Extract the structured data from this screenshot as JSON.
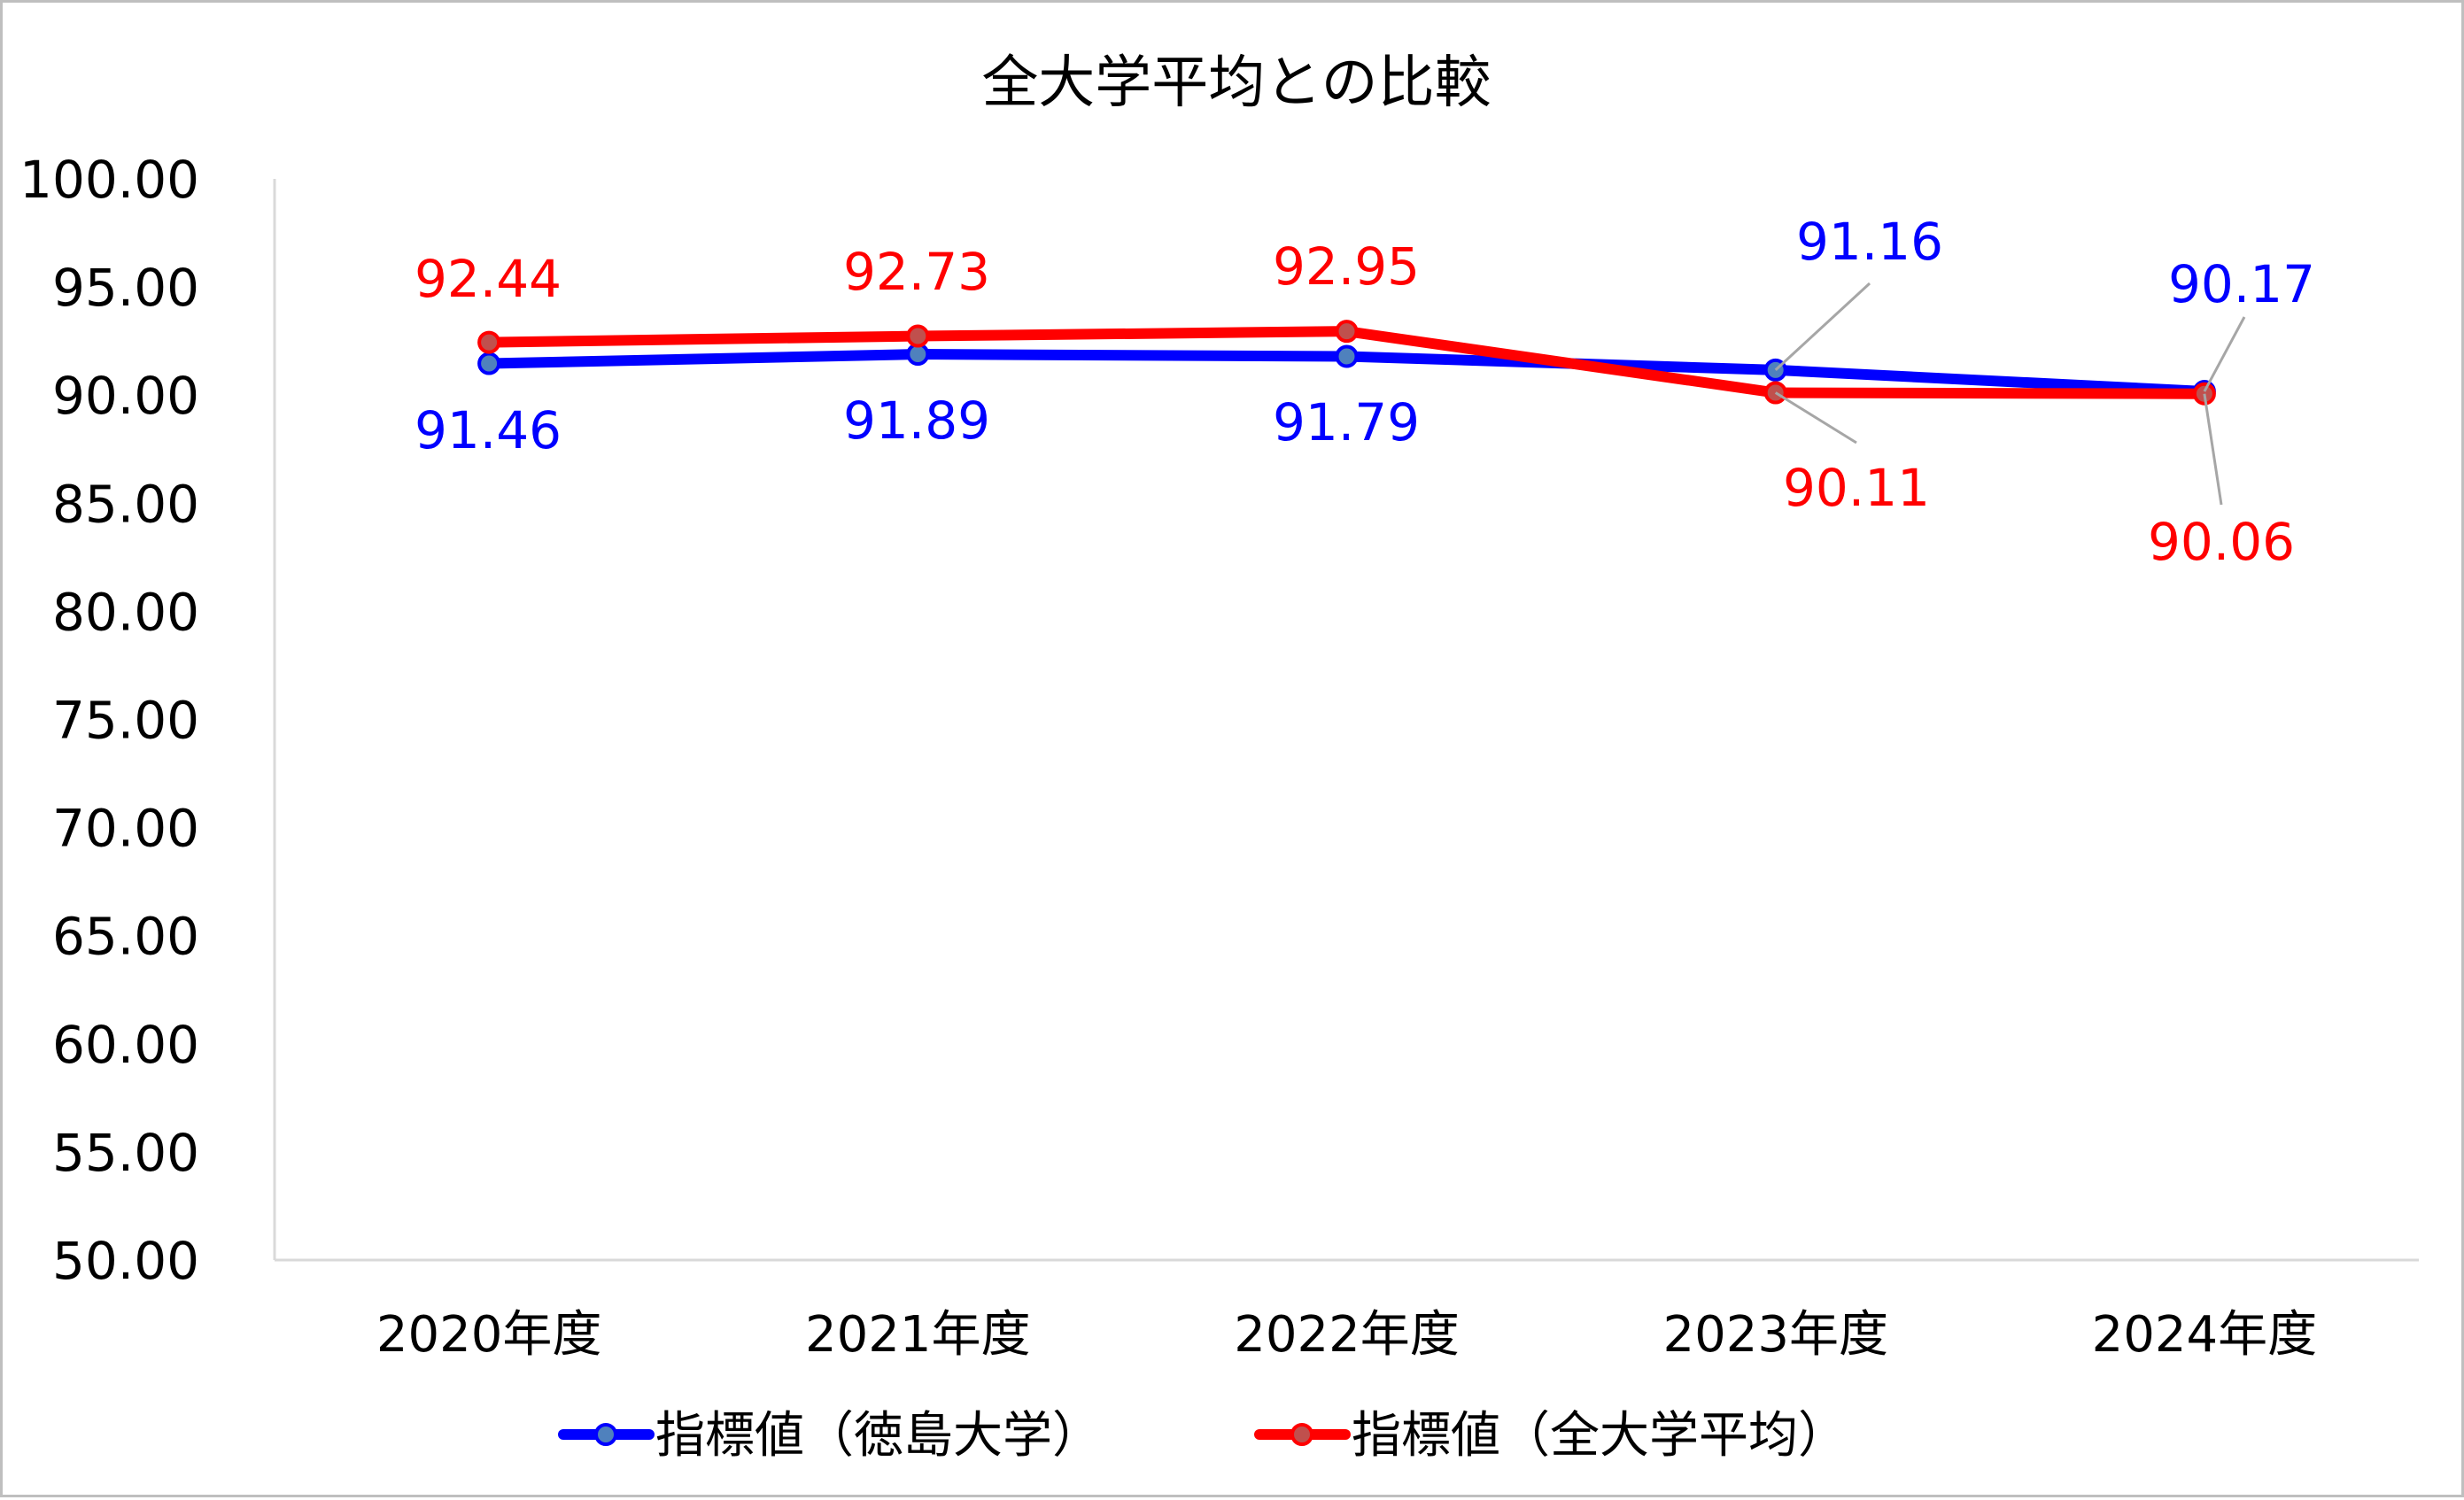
{
  "chart_data": {
    "type": "line",
    "title": "全大学平均との比較",
    "xlabel": "",
    "ylabel": "",
    "categories": [
      "2020年度",
      "2021年度",
      "2022年度",
      "2023年度",
      "2024年度"
    ],
    "ylim": [
      50,
      100
    ],
    "yticks": [
      "100.00",
      "95.00",
      "90.00",
      "85.00",
      "80.00",
      "75.00",
      "70.00",
      "65.00",
      "60.00",
      "55.00",
      "50.00"
    ],
    "grid": false,
    "legend_position": "bottom",
    "series": [
      {
        "name": "指標値（徳島大学）",
        "values": [
          91.46,
          91.89,
          91.79,
          91.16,
          90.17
        ],
        "labels": [
          "91.46",
          "91.89",
          "91.79",
          "91.16",
          "90.17"
        ],
        "line_color": "#0000FF",
        "marker_fill": "#4F81BD",
        "label_color": "#0000FF"
      },
      {
        "name": "指標値（全大学平均）",
        "values": [
          92.44,
          92.73,
          92.95,
          90.11,
          90.06
        ],
        "labels": [
          "92.44",
          "92.73",
          "92.95",
          "90.11",
          "90.06"
        ],
        "line_color": "#FF0000",
        "marker_fill": "#C0504D",
        "label_color": "#FF0000"
      }
    ]
  },
  "colors": {
    "border": "#BFBFBF",
    "axis": "#D9D9D9",
    "leader_line": "#A6A6A6",
    "text": "#000000"
  }
}
